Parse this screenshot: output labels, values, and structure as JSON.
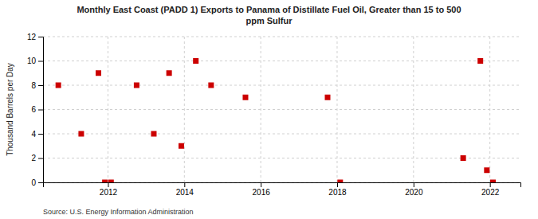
{
  "chart_data": {
    "type": "scatter",
    "title": "Monthly East Coast (PADD 1) Exports to Panama of Distillate Fuel Oil, Greater than 15 to 500\nppm Sulfur",
    "ylabel": "Thousand Barrels per Day",
    "source": "Source: U.S. Energy Information Administration",
    "x": [
      2010.7,
      2011.3,
      2011.75,
      2011.92,
      2012.08,
      2012.75,
      2013.2,
      2013.6,
      2013.92,
      2014.3,
      2014.7,
      2015.6,
      2017.75,
      2018.08,
      2021.3,
      2021.75,
      2021.92,
      2022.08
    ],
    "values": [
      8,
      4,
      9,
      0,
      0,
      8,
      4,
      9,
      3,
      10,
      8,
      7,
      7,
      0,
      2,
      10,
      1,
      0
    ],
    "color": "#cc0000",
    "marker": "square",
    "xlim": [
      2010.3,
      2022.8
    ],
    "ylim": [
      0,
      12
    ],
    "xticks": [
      2012,
      2014,
      2016,
      2018,
      2020,
      2022
    ],
    "yticks": [
      0,
      2,
      4,
      6,
      8,
      10,
      12
    ],
    "grid": true
  }
}
